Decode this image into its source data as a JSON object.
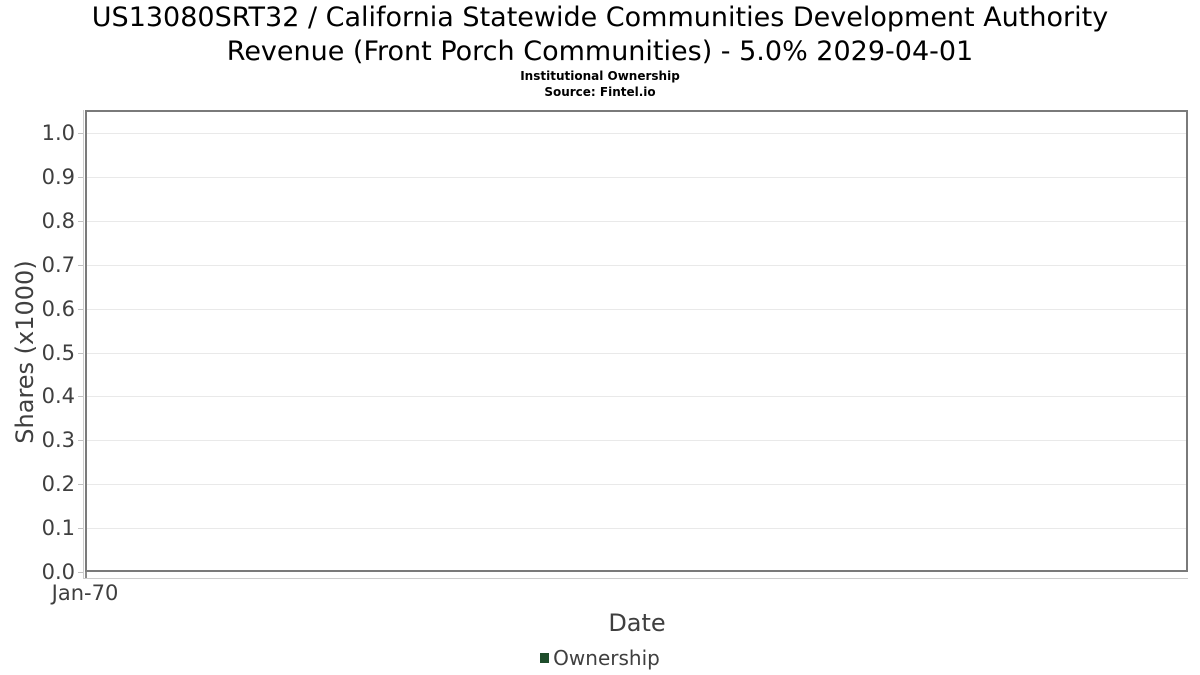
{
  "chart": {
    "title_line1": "US13080SRT32 / California Statewide Communities Development Authority",
    "title_line2": "Revenue (Front Porch Communities) - 5.0% 2029-04-01",
    "subtitle": "Institutional Ownership",
    "source": "Source: Fintel.io"
  },
  "chart_data": {
    "type": "line",
    "title": "US13080SRT32 / California Statewide Communities Development Authority Revenue (Front Porch Communities) - 5.0% 2029-04-01",
    "subtitle": "Institutional Ownership",
    "source": "Source: Fintel.io",
    "xlabel": "Date",
    "ylabel": "Shares (x1000)",
    "x_ticks": [
      "Jan-70"
    ],
    "y_ticks": [
      0.0,
      0.1,
      0.2,
      0.3,
      0.4,
      0.5,
      0.6,
      0.7,
      0.8,
      0.9,
      1.0
    ],
    "ylim": [
      0,
      1.05
    ],
    "grid": true,
    "legend_position": "bottom",
    "series": [
      {
        "name": "Ownership",
        "color": "#1e4d2b",
        "x": [],
        "values": []
      }
    ]
  },
  "colors": {
    "legend_green": "#1e4d2b",
    "plot_border": "#7a7a7a",
    "gridline": "#e9e9e9",
    "axis_line": "#cdcdcd",
    "tick_text": "#3f3f3f",
    "title_text": "#000000",
    "background": "#ffffff"
  }
}
